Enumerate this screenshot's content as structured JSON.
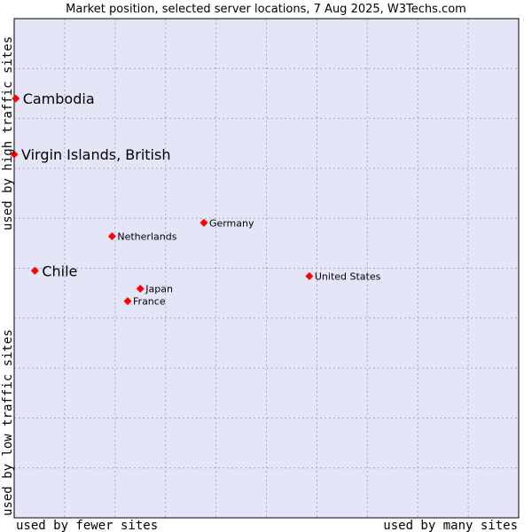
{
  "chart_data": {
    "type": "scatter",
    "title": "Market position, selected server locations, 7 Aug 2025, W3Techs.com",
    "xlabel_left": "used by fewer sites",
    "xlabel_right": "used by many sites",
    "ylabel_bottom": "used by low traffic sites",
    "ylabel_top": "used by high traffic sites",
    "grid": true,
    "xlim": [
      0,
      100
    ],
    "ylim": [
      0,
      100
    ],
    "colors": {
      "plot_background": "#e4e6f8",
      "grid": "#a6a9c4",
      "frame": "#000000",
      "marker": "#ff0000"
    },
    "points": [
      {
        "name": "Cambodia",
        "x": 0.3,
        "y": 84.0,
        "size": "large"
      },
      {
        "name": "Virgin Islands, British",
        "x": 0.0,
        "y": 72.8,
        "size": "large"
      },
      {
        "name": "Germany",
        "x": 37.6,
        "y": 59.1,
        "size": "small"
      },
      {
        "name": "Netherlands",
        "x": 19.4,
        "y": 56.4,
        "size": "small"
      },
      {
        "name": "Chile",
        "x": 4.1,
        "y": 49.5,
        "size": "large"
      },
      {
        "name": "United States",
        "x": 58.5,
        "y": 48.4,
        "size": "small"
      },
      {
        "name": "Japan",
        "x": 25.0,
        "y": 45.9,
        "size": "small"
      },
      {
        "name": "France",
        "x": 22.5,
        "y": 43.4,
        "size": "small"
      }
    ]
  }
}
